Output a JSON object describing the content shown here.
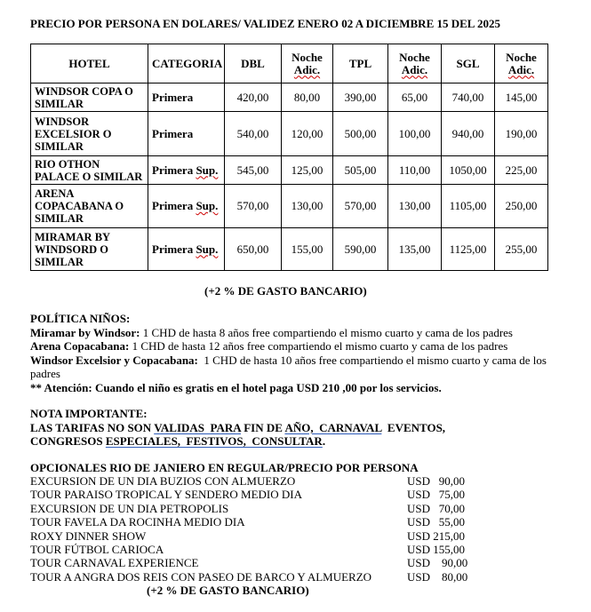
{
  "title": "PRECIO POR PERSONA EN DOLARES/ VALIDEZ ENERO 02 A DICIEMBRE 15 DEL 2025",
  "table": {
    "headers": [
      "HOTEL",
      "CATEGORIA",
      "DBL",
      "Noche",
      "TPL",
      "Noche",
      "SGL",
      "Noche"
    ],
    "header_sub": "Adic.",
    "rows": [
      {
        "hotel": "WINDSOR COPA O SIMILAR",
        "cat": "Primera",
        "cat_sup": "",
        "v": [
          "420,00",
          "80,00",
          "390,00",
          "65,00",
          "740,00",
          "145,00"
        ]
      },
      {
        "hotel": "WINDSOR EXCELSIOR O SIMILAR",
        "cat": "Primera",
        "cat_sup": "",
        "v": [
          "540,00",
          "120,00",
          "500,00",
          "100,00",
          "940,00",
          "190,00"
        ]
      },
      {
        "hotel": "RIO OTHON PALACE O SIMILAR",
        "cat": "Primera ",
        "cat_sup": "Sup.",
        "v": [
          "545,00",
          "125,00",
          "505,00",
          "110,00",
          "1050,00",
          "225,00"
        ]
      },
      {
        "hotel": "ARENA COPACABANA O SIMILAR",
        "cat": "Primera ",
        "cat_sup": "Sup.",
        "v": [
          "570,00",
          "130,00",
          "570,00",
          "130,00",
          "1105,00",
          "250,00"
        ]
      },
      {
        "hotel": "MIRAMAR BY WINDSORD O SIMILAR",
        "cat": "Primera ",
        "cat_sup": "Sup.",
        "v": [
          "650,00",
          "155,00",
          "590,00",
          "135,00",
          "1125,00",
          "255,00"
        ]
      }
    ]
  },
  "bank_fee": "(+2 % DE GASTO BANCARIO)",
  "kids": {
    "title": "POLÍTICA NIÑOS:",
    "lines": [
      {
        "label": "Miramar by Windsor:",
        "text": " 1 CHD de hasta 8 años free compartiendo el mismo cuarto y cama de los padres"
      },
      {
        "label": "Arena Copacabana:",
        "text": " 1 CHD de hasta 12 años free compartiendo el mismo cuarto y cama de los padres"
      },
      {
        "label": "Windsor Excelsior y Copacabana:",
        "text": "  1 CHD de hasta 10 años free compartiendo el mismo cuarto y cama de los padres"
      }
    ],
    "attention": "** Atención: Cuando el niño es gratis en el hotel paga USD 210 ,00 por los servicios."
  },
  "nota": {
    "title": "NOTA IMPORTANTE:",
    "p1": "LAS TARIFAS NO SON ",
    "u1": "VALIDAS  PARA",
    "p2": " FIN DE ",
    "u2": "AÑO,  CARNAVAL",
    "p3": "  EVENTOS,",
    "p4": "CONGRESOS ",
    "u3": "ESPECIALES,  FESTIVOS,  CONSULTAR",
    "p5": "."
  },
  "opcionales": {
    "title": "OPCIONALES RIO DE JANIERO EN REGULAR/PRECIO POR PERSONA",
    "items": [
      {
        "name": "EXCURSION DE UN DIA BUZIOS CON ALMUERZO",
        "price": "USD   90,00"
      },
      {
        "name": "TOUR PARAISO TROPICAL Y SENDERO MEDIO DIA",
        "price": "USD   75,00"
      },
      {
        "name": "EXCURSION DE UN DIA PETROPOLIS",
        "price": "USD   70,00"
      },
      {
        "name": "TOUR FAVELA DA ROCINHA MEDIO DIA",
        "price": "USD   55,00"
      },
      {
        "name": "ROXY DINNER SHOW",
        "price": "USD 215,00"
      },
      {
        "name": "TOUR FÚTBOL CARIOCA",
        "price": "USD 155,00"
      },
      {
        "name": "TOUR CARNAVAL EXPERIENCE",
        "price": "USD    90,00"
      },
      {
        "name": "TOUR A ANGRA DOS REIS CON PASEO DE BARCO Y ALMUERZO",
        "price": "USD    80,00"
      }
    ],
    "fee": "(+2 % DE GASTO BANCARIO)"
  }
}
